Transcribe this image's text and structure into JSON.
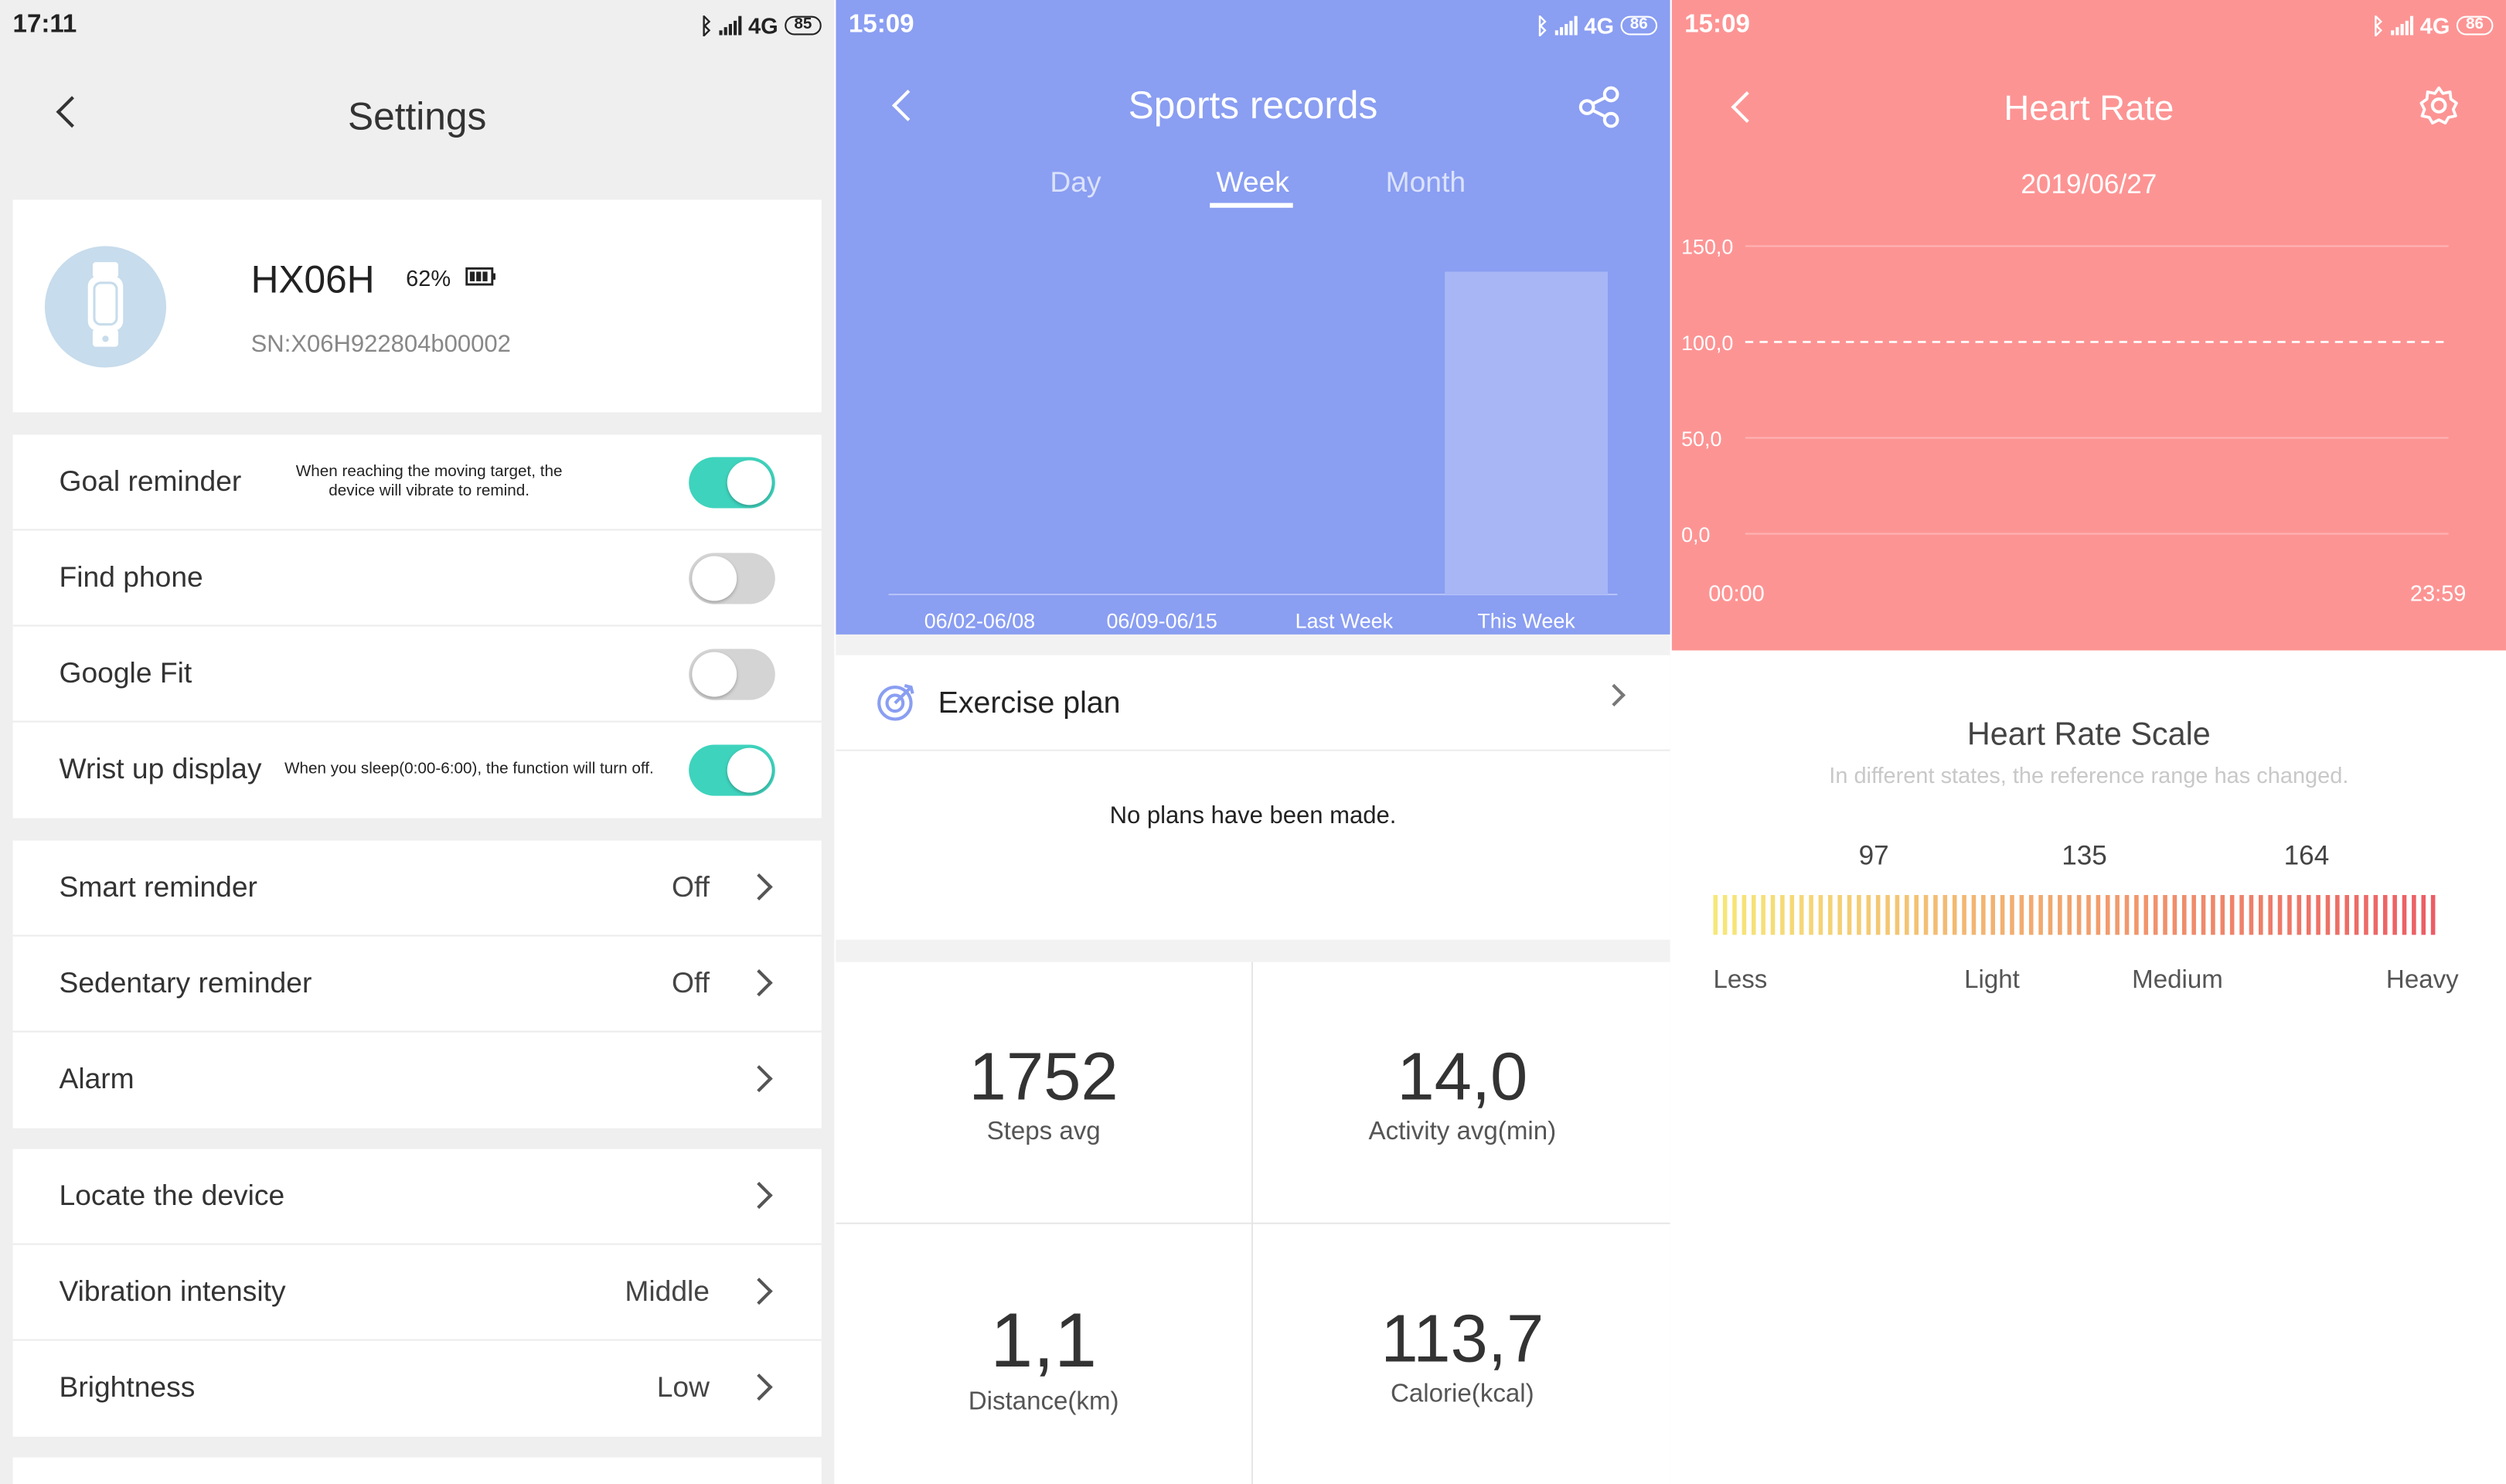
{
  "colors": {
    "accent_teal": "#3ed3bd",
    "sports_blue": "#8a9ef2",
    "heart_red": "#fd9494",
    "bar_light": "#a8b6f6"
  },
  "settings": {
    "status": {
      "time": "17:11",
      "network": "4G",
      "battery": "85"
    },
    "title": "Settings",
    "device": {
      "name": "HX06H",
      "battery": "62%",
      "sn": "SN:X06H922804b00002"
    },
    "toggles": [
      {
        "label": "Goal reminder",
        "desc": "When reaching the moving target, the device will vibrate to remind.",
        "on": true
      },
      {
        "label": "Find phone",
        "desc": "",
        "on": false
      },
      {
        "label": "Google Fit",
        "desc": "",
        "on": false
      },
      {
        "label": "Wrist up display",
        "desc": "When you sleep(0:00-6:00), the function will turn off.",
        "on": true
      }
    ],
    "group2": [
      {
        "label": "Smart reminder",
        "value": "Off"
      },
      {
        "label": "Sedentary reminder",
        "value": "Off"
      },
      {
        "label": "Alarm",
        "value": ""
      }
    ],
    "group3": [
      {
        "label": "Locate the device",
        "value": ""
      },
      {
        "label": "Vibration intensity",
        "value": "Middle"
      },
      {
        "label": "Brightness",
        "value": "Low"
      }
    ]
  },
  "sports": {
    "status": {
      "time": "15:09",
      "network": "4G",
      "battery": "86"
    },
    "title": "Sports records",
    "tabs": [
      "Day",
      "Week",
      "Month"
    ],
    "active_tab": "Week",
    "exercise_plan": "Exercise plan",
    "no_plans": "No plans have been made.",
    "stats": [
      {
        "value": "1752",
        "label": "Steps avg"
      },
      {
        "value": "14,0",
        "label": "Activity avg(min)"
      },
      {
        "value": "1,1",
        "label": "Distance(km)"
      },
      {
        "value": "113,7",
        "label": "Calorie(kcal)"
      }
    ]
  },
  "heart": {
    "status": {
      "time": "15:09",
      "network": "4G",
      "battery": "86"
    },
    "title": "Heart Rate",
    "date": "2019/06/27",
    "scale_title": "Heart Rate Scale",
    "scale_subtitle": "In different states, the reference range has changed.",
    "scale_values": [
      "97",
      "135",
      "164"
    ],
    "scale_labels": [
      "Less",
      "Light",
      "Medium",
      "Heavy"
    ]
  },
  "chart_data": [
    {
      "type": "bar",
      "categories": [
        "06/02-06/08",
        "06/09-06/15",
        "Last Week",
        "This Week"
      ],
      "values": [
        0,
        0,
        0,
        1752
      ]
    },
    {
      "type": "line",
      "y_ticks": [
        "150,0",
        "100,0",
        "50,0",
        "0,0"
      ],
      "ylim": [
        0,
        150
      ],
      "reference_line": 100,
      "x_ticks": [
        "00:00",
        "23:59"
      ],
      "series": []
    }
  ]
}
